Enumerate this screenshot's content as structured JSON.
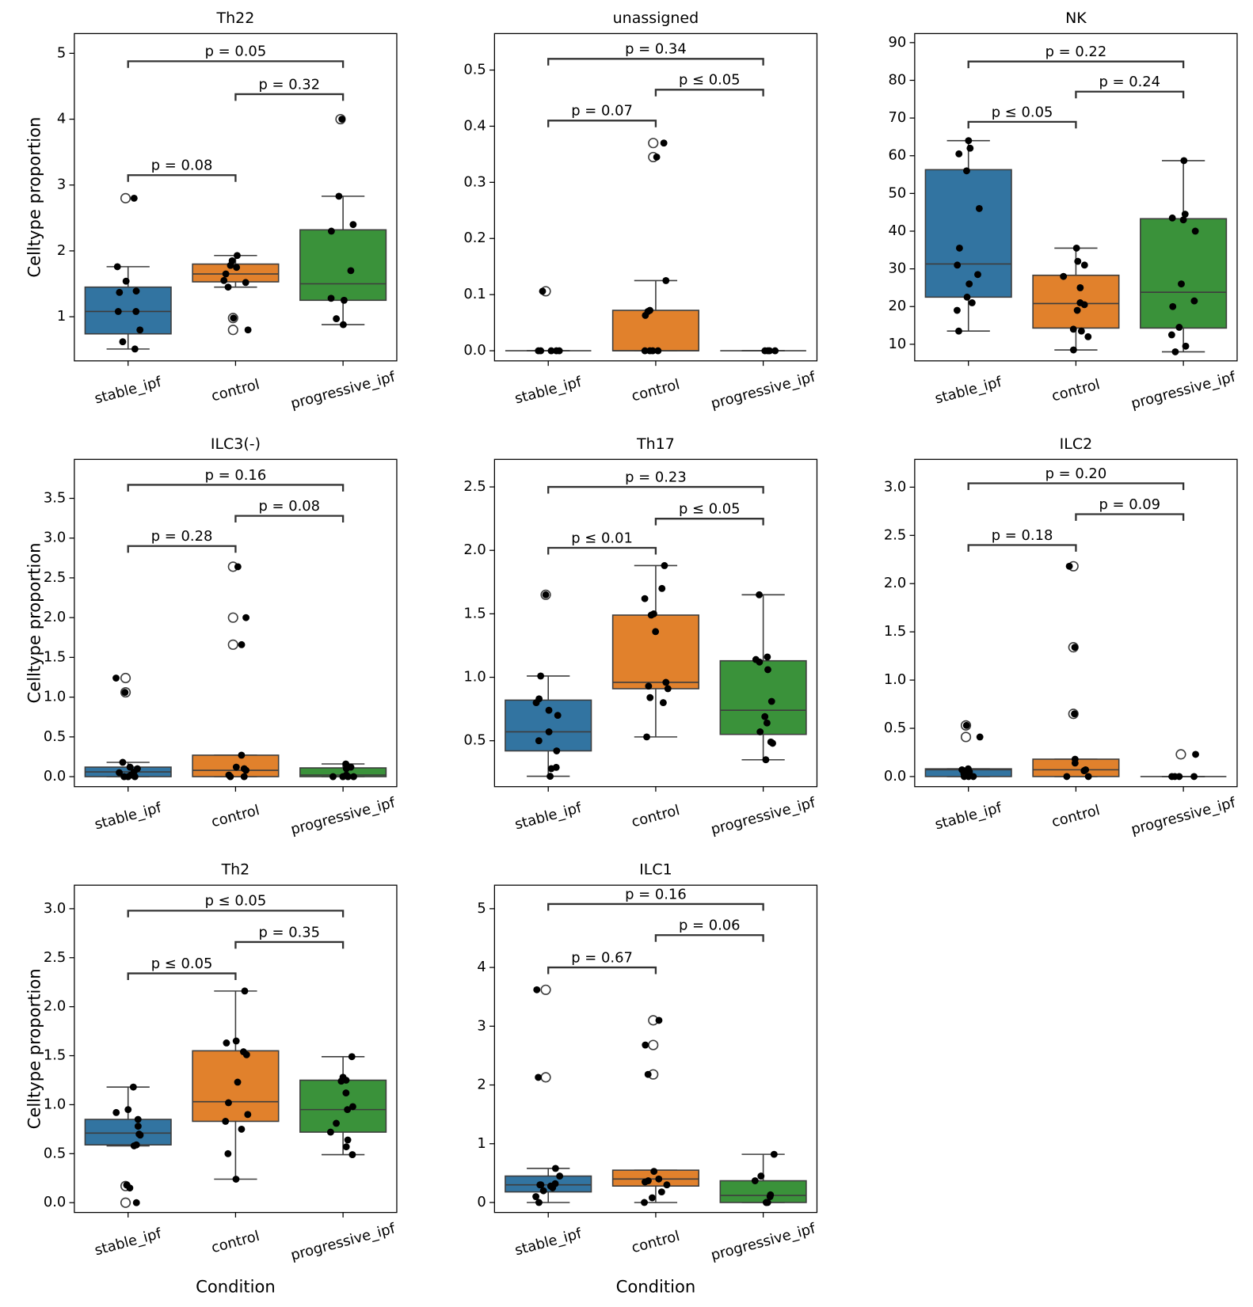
{
  "chart_data": [
    {
      "type": "box",
      "title": "Th22",
      "ylabel": "Celltype proportion",
      "categories": [
        "stable_ipf",
        "control",
        "progressive_ipf"
      ],
      "colors": [
        "#3274a1",
        "#e1812c",
        "#3a923a"
      ],
      "ylim": [
        0.33,
        5.3
      ],
      "yticks": [
        1,
        2,
        3,
        4,
        5
      ],
      "boxes": [
        {
          "whislo": 0.51,
          "q1": 0.74,
          "med": 1.08,
          "q3": 1.45,
          "whishi": 1.76,
          "fliers": [
            2.8
          ],
          "points": [
            2.8,
            1.76,
            1.54,
            1.39,
            1.37,
            1.08,
            1.08,
            0.8,
            0.62,
            0.51
          ]
        },
        {
          "whislo": 1.45,
          "q1": 1.53,
          "med": 1.65,
          "q3": 1.8,
          "whishi": 1.93,
          "fliers": [
            0.98,
            0.8
          ],
          "points": [
            1.93,
            1.85,
            1.78,
            1.75,
            1.65,
            1.55,
            1.52,
            1.45,
            0.98,
            0.8
          ]
        },
        {
          "whislo": 0.88,
          "q1": 1.25,
          "med": 1.5,
          "q3": 2.32,
          "whishi": 2.83,
          "fliers": [
            4.0
          ],
          "points": [
            4.0,
            2.83,
            2.4,
            2.3,
            1.7,
            1.28,
            1.25,
            0.97,
            0.88
          ]
        }
      ],
      "brackets": [
        {
          "from": 0,
          "to": 1,
          "y": 3.15,
          "label": "p = 0.08"
        },
        {
          "from": 1,
          "to": 2,
          "y": 4.38,
          "label": "p = 0.32"
        },
        {
          "from": 0,
          "to": 2,
          "y": 4.88,
          "label": "p = 0.05"
        }
      ]
    },
    {
      "type": "box",
      "title": "unassigned",
      "categories": [
        "stable_ipf",
        "control",
        "progressive_ipf"
      ],
      "colors": [
        "#3274a1",
        "#e1812c",
        "#3a923a"
      ],
      "ylim": [
        -0.018,
        0.565
      ],
      "yticks": [
        {
          "value": 0,
          "label": "0.0"
        },
        0.1,
        0.2,
        0.3,
        0.4,
        0.5
      ],
      "boxes": [
        {
          "whislo": 0,
          "q1": 0,
          "med": 0,
          "q3": 0,
          "whishi": 0,
          "fliers": [
            0.106
          ],
          "points": [
            0.106,
            0,
            0,
            0,
            0,
            0
          ]
        },
        {
          "whislo": 0,
          "q1": 0,
          "med": 0,
          "q3": 0.072,
          "whishi": 0.125,
          "fliers": [
            0.37,
            0.345
          ],
          "points": [
            0.37,
            0.345,
            0.125,
            0.072,
            0.07,
            0.063,
            0,
            0,
            0,
            0
          ]
        },
        {
          "whislo": 0,
          "q1": 0,
          "med": 0,
          "q3": 0,
          "whishi": 0,
          "fliers": [],
          "points": [
            0,
            0,
            0,
            0
          ]
        }
      ],
      "brackets": [
        {
          "from": 0,
          "to": 1,
          "y": 0.41,
          "label": "p = 0.07"
        },
        {
          "from": 1,
          "to": 2,
          "y": 0.465,
          "label": "p ≤ 0.05"
        },
        {
          "from": 0,
          "to": 2,
          "y": 0.52,
          "label": "p = 0.34"
        }
      ]
    },
    {
      "type": "box",
      "title": "NK",
      "categories": [
        "stable_ipf",
        "control",
        "progressive_ipf"
      ],
      "colors": [
        "#3274a1",
        "#e1812c",
        "#3a923a"
      ],
      "ylim": [
        5.6,
        92.4
      ],
      "yticks": [
        10,
        20,
        30,
        40,
        50,
        60,
        70,
        80,
        90
      ],
      "boxes": [
        {
          "whislo": 13.5,
          "q1": 22.5,
          "med": 31.3,
          "q3": 56.3,
          "whishi": 64,
          "fliers": [],
          "points": [
            64,
            62,
            60.5,
            56,
            46,
            35.5,
            31,
            28.5,
            26,
            22.5,
            21,
            19,
            13.5
          ]
        },
        {
          "whislo": 8.5,
          "q1": 14.3,
          "med": 20.8,
          "q3": 28.3,
          "whishi": 35.5,
          "fliers": [],
          "points": [
            35.5,
            32,
            31,
            28,
            25,
            21,
            20.5,
            19,
            14,
            13.5,
            12,
            8.5
          ]
        },
        {
          "whislo": 8,
          "q1": 14.3,
          "med": 23.8,
          "q3": 43.3,
          "whishi": 58.7,
          "fliers": [],
          "points": [
            58.7,
            44.5,
            43.5,
            43,
            40,
            26,
            21.5,
            20,
            14.5,
            12.5,
            9.5,
            8
          ]
        }
      ],
      "brackets": [
        {
          "from": 0,
          "to": 1,
          "y": 69,
          "label": "p ≤ 0.05"
        },
        {
          "from": 1,
          "to": 2,
          "y": 77,
          "label": "p = 0.24"
        },
        {
          "from": 0,
          "to": 2,
          "y": 85,
          "label": "p = 0.22"
        }
      ]
    },
    {
      "type": "box",
      "title": "ILC3(-)",
      "ylabel": "Celltype proportion",
      "categories": [
        "stable_ipf",
        "control",
        "progressive_ipf"
      ],
      "colors": [
        "#3274a1",
        "#e1812c",
        "#3a923a"
      ],
      "ylim": [
        -0.126,
        3.99
      ],
      "yticks": [
        {
          "value": 0,
          "label": "0.0"
        },
        0.5,
        {
          "value": 1,
          "label": "1.0"
        },
        1.5,
        {
          "value": 2,
          "label": "2.0"
        },
        2.5,
        {
          "value": 3,
          "label": "3.0"
        },
        3.5
      ],
      "boxes": [
        {
          "whislo": 0,
          "q1": 0,
          "med": 0.06,
          "q3": 0.12,
          "whishi": 0.18,
          "fliers": [
            1.24,
            1.06
          ],
          "points": [
            1.24,
            1.06,
            0.18,
            0.12,
            0.1,
            0.06,
            0.05,
            0.02,
            0,
            0,
            0
          ]
        },
        {
          "whislo": 0,
          "q1": 0,
          "med": 0.08,
          "q3": 0.27,
          "whishi": 0.27,
          "fliers": [
            2.64,
            2.0,
            1.66
          ],
          "points": [
            2.64,
            2.0,
            1.66,
            0.27,
            0.12,
            0.1,
            0.08,
            0.02,
            0,
            0
          ]
        },
        {
          "whislo": 0,
          "q1": 0,
          "med": 0.02,
          "q3": 0.11,
          "whishi": 0.16,
          "fliers": [],
          "points": [
            0.16,
            0.12,
            0.1,
            0.02,
            0,
            0,
            0,
            0
          ]
        }
      ],
      "brackets": [
        {
          "from": 0,
          "to": 1,
          "y": 2.9,
          "label": "p = 0.28"
        },
        {
          "from": 1,
          "to": 2,
          "y": 3.28,
          "label": "p = 0.08"
        },
        {
          "from": 0,
          "to": 2,
          "y": 3.67,
          "label": "p = 0.16"
        }
      ]
    },
    {
      "type": "box",
      "title": "Th17",
      "categories": [
        "stable_ipf",
        "control",
        "progressive_ipf"
      ],
      "colors": [
        "#3274a1",
        "#e1812c",
        "#3a923a"
      ],
      "ylim": [
        0.138,
        2.717
      ],
      "yticks": [
        0.5,
        {
          "value": 1,
          "label": "1.0"
        },
        1.5,
        {
          "value": 2,
          "label": "2.0"
        },
        2.5
      ],
      "boxes": [
        {
          "whislo": 0.22,
          "q1": 0.42,
          "med": 0.57,
          "q3": 0.82,
          "whishi": 1.01,
          "fliers": [
            1.65
          ],
          "points": [
            1.65,
            1.01,
            0.83,
            0.8,
            0.74,
            0.7,
            0.57,
            0.5,
            0.42,
            0.29,
            0.28,
            0.22
          ]
        },
        {
          "whislo": 0.53,
          "q1": 0.91,
          "med": 0.96,
          "q3": 1.49,
          "whishi": 1.88,
          "fliers": [],
          "points": [
            1.88,
            1.7,
            1.62,
            1.5,
            1.49,
            1.36,
            0.96,
            0.93,
            0.91,
            0.84,
            0.8,
            0.53
          ]
        },
        {
          "whislo": 0.35,
          "q1": 0.55,
          "med": 0.74,
          "q3": 1.13,
          "whishi": 1.65,
          "fliers": [],
          "points": [
            1.65,
            1.16,
            1.14,
            1.12,
            1.06,
            0.81,
            0.69,
            0.64,
            0.57,
            0.49,
            0.48,
            0.35
          ]
        }
      ],
      "brackets": [
        {
          "from": 0,
          "to": 1,
          "y": 2.02,
          "label": "p ≤ 0.01"
        },
        {
          "from": 1,
          "to": 2,
          "y": 2.25,
          "label": "p ≤ 0.05"
        },
        {
          "from": 0,
          "to": 2,
          "y": 2.5,
          "label": "p = 0.23"
        }
      ]
    },
    {
      "type": "box",
      "title": "ILC2",
      "categories": [
        "stable_ipf",
        "control",
        "progressive_ipf"
      ],
      "colors": [
        "#3274a1",
        "#e1812c",
        "#3a923a"
      ],
      "ylim": [
        -0.105,
        3.288
      ],
      "yticks": [
        {
          "value": 0,
          "label": "0.0"
        },
        0.5,
        {
          "value": 1,
          "label": "1.0"
        },
        1.5,
        {
          "value": 2,
          "label": "2.0"
        },
        2.5,
        {
          "value": 3,
          "label": "3.0"
        }
      ],
      "boxes": [
        {
          "whislo": 0,
          "q1": 0,
          "med": 0.07,
          "q3": 0.08,
          "whishi": 0.08,
          "fliers": [
            0.53,
            0.41
          ],
          "points": [
            0.53,
            0.41,
            0.08,
            0.07,
            0.05,
            0.03,
            0,
            0,
            0
          ]
        },
        {
          "whislo": 0,
          "q1": 0,
          "med": 0.07,
          "q3": 0.18,
          "whishi": 0.18,
          "fliers": [
            2.18,
            1.34,
            0.65
          ],
          "points": [
            2.18,
            1.34,
            0.65,
            0.18,
            0.14,
            0.07,
            0.06,
            0,
            0
          ]
        },
        {
          "whislo": 0,
          "q1": 0,
          "med": 0,
          "q3": 0,
          "whishi": 0,
          "fliers": [
            0.23
          ],
          "points": [
            0.23,
            0,
            0,
            0,
            0
          ]
        }
      ],
      "brackets": [
        {
          "from": 0,
          "to": 1,
          "y": 2.4,
          "label": "p = 0.18"
        },
        {
          "from": 1,
          "to": 2,
          "y": 2.72,
          "label": "p = 0.09"
        },
        {
          "from": 0,
          "to": 2,
          "y": 3.04,
          "label": "p = 0.20"
        }
      ]
    },
    {
      "type": "box",
      "title": "Th2",
      "ylabel": "Celltype proportion",
      "xlabel": "Condition",
      "categories": [
        "stable_ipf",
        "control",
        "progressive_ipf"
      ],
      "colors": [
        "#3274a1",
        "#e1812c",
        "#3a923a"
      ],
      "ylim": [
        -0.1,
        3.24
      ],
      "yticks": [
        {
          "value": 0,
          "label": "0.0"
        },
        0.5,
        {
          "value": 1,
          "label": "1.0"
        },
        1.5,
        {
          "value": 2,
          "label": "2.0"
        },
        2.5,
        {
          "value": 3,
          "label": "3.0"
        }
      ],
      "boxes": [
        {
          "whislo": 0.58,
          "q1": 0.59,
          "med": 0.71,
          "q3": 0.85,
          "whishi": 1.18,
          "fliers": [
            0.17,
            0.0
          ],
          "points": [
            1.18,
            0.95,
            0.92,
            0.85,
            0.78,
            0.7,
            0.69,
            0.59,
            0.58,
            0.18,
            0.15,
            0.0
          ]
        },
        {
          "whislo": 0.24,
          "q1": 0.83,
          "med": 1.03,
          "q3": 1.55,
          "whishi": 2.16,
          "fliers": [],
          "points": [
            2.16,
            1.65,
            1.63,
            1.54,
            1.51,
            1.23,
            1.02,
            0.9,
            0.83,
            0.75,
            0.5,
            0.24
          ]
        },
        {
          "whislo": 0.49,
          "q1": 0.72,
          "med": 0.95,
          "q3": 1.25,
          "whishi": 1.49,
          "fliers": [],
          "points": [
            1.49,
            1.28,
            1.25,
            1.24,
            1.12,
            0.98,
            0.95,
            0.81,
            0.72,
            0.64,
            0.57,
            0.49
          ]
        }
      ],
      "brackets": [
        {
          "from": 0,
          "to": 1,
          "y": 2.34,
          "label": "p ≤ 0.05"
        },
        {
          "from": 1,
          "to": 2,
          "y": 2.66,
          "label": "p = 0.35"
        },
        {
          "from": 0,
          "to": 2,
          "y": 2.98,
          "label": "p ≤ 0.05"
        }
      ]
    },
    {
      "type": "box",
      "title": "ILC1",
      "xlabel": "Condition",
      "categories": [
        "stable_ipf",
        "control",
        "progressive_ipf"
      ],
      "colors": [
        "#3274a1",
        "#e1812c",
        "#3a923a"
      ],
      "ylim": [
        -0.17,
        5.4
      ],
      "yticks": [
        0,
        1,
        2,
        3,
        4,
        5
      ],
      "boxes": [
        {
          "whislo": 0,
          "q1": 0.18,
          "med": 0.3,
          "q3": 0.45,
          "whishi": 0.58,
          "fliers": [
            3.62,
            2.13
          ],
          "points": [
            3.62,
            2.13,
            0.58,
            0.45,
            0.32,
            0.3,
            0.3,
            0.28,
            0.25,
            0.2,
            0.1,
            0
          ]
        },
        {
          "whislo": 0,
          "q1": 0.28,
          "med": 0.4,
          "q3": 0.55,
          "whishi": 0.55,
          "fliers": [
            3.1,
            2.68,
            2.18
          ],
          "points": [
            3.1,
            2.68,
            2.18,
            0.53,
            0.4,
            0.37,
            0.35,
            0.3,
            0.18,
            0.08,
            0
          ]
        },
        {
          "whislo": 0,
          "q1": 0,
          "med": 0.12,
          "q3": 0.37,
          "whishi": 0.82,
          "fliers": [],
          "points": [
            0.82,
            0.45,
            0.37,
            0.13,
            0.1,
            0,
            0,
            0
          ]
        }
      ],
      "brackets": [
        {
          "from": 0,
          "to": 1,
          "y": 4.0,
          "label": "p = 0.67"
        },
        {
          "from": 1,
          "to": 2,
          "y": 4.55,
          "label": "p = 0.06"
        },
        {
          "from": 0,
          "to": 2,
          "y": 5.08,
          "label": "p = 0.16"
        }
      ]
    }
  ]
}
